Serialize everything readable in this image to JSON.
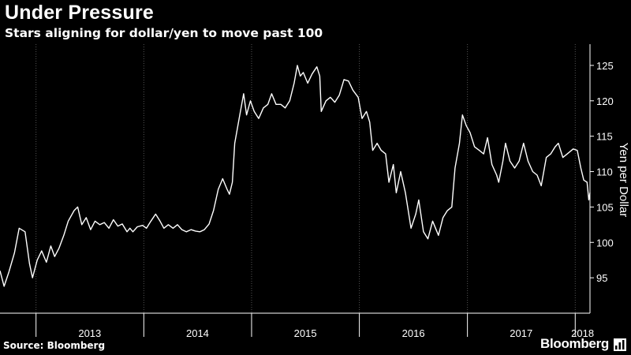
{
  "header": {
    "title": "Under Pressure",
    "subtitle": "Stars aligning for dollar/yen to move past 100"
  },
  "footer": {
    "source": "Source: Bloomberg",
    "brand": "Bloomberg"
  },
  "colors": {
    "background": "#000000",
    "line": "#ffffff",
    "grid": "#555555",
    "text": "#ffffff"
  },
  "chart_data": {
    "type": "line",
    "title": "Under Pressure",
    "subtitle": "Stars aligning for dollar/yen to move past 100",
    "ylabel": "Yen per Dollar",
    "xlabel": "",
    "ylim": [
      90,
      128
    ],
    "xlim": [
      "2012-09-01",
      "2018-02-20"
    ],
    "y_ticks": [
      95,
      100,
      105,
      110,
      115,
      120,
      125
    ],
    "y_tick_labels": [
      "95",
      "100",
      "105",
      "110",
      "115",
      "120",
      "125"
    ],
    "x_year_labels": [
      "2013",
      "2014",
      "2015",
      "2016",
      "2017",
      "2018"
    ],
    "grid": "vertical dotted at year boundaries",
    "y_axis_side": "right",
    "series": [
      {
        "values": [
          [
            "2012-09-01",
            96.0
          ],
          [
            "2012-09-15",
            93.8
          ],
          [
            "2012-10-01",
            95.8
          ],
          [
            "2012-10-20",
            98.5
          ],
          [
            "2012-11-05",
            102.0
          ],
          [
            "2012-11-25",
            101.5
          ],
          [
            "2012-12-10",
            97.0
          ],
          [
            "2012-12-20",
            95.0
          ],
          [
            "2013-01-05",
            97.5
          ],
          [
            "2013-01-20",
            98.8
          ],
          [
            "2013-02-05",
            97.2
          ],
          [
            "2013-02-20",
            99.5
          ],
          [
            "2013-03-05",
            98.0
          ],
          [
            "2013-03-20",
            99.2
          ],
          [
            "2013-04-05",
            101.0
          ],
          [
            "2013-04-20",
            103.0
          ],
          [
            "2013-05-10",
            104.5
          ],
          [
            "2013-05-22",
            105.0
          ],
          [
            "2013-06-05",
            102.5
          ],
          [
            "2013-06-20",
            103.5
          ],
          [
            "2013-07-05",
            101.8
          ],
          [
            "2013-07-20",
            103.0
          ],
          [
            "2013-08-05",
            102.5
          ],
          [
            "2013-08-20",
            102.8
          ],
          [
            "2013-09-05",
            102.0
          ],
          [
            "2013-09-20",
            103.2
          ],
          [
            "2013-10-05",
            102.3
          ],
          [
            "2013-10-20",
            102.6
          ],
          [
            "2013-11-05",
            101.5
          ],
          [
            "2013-11-15",
            102.0
          ],
          [
            "2013-11-25",
            101.5
          ],
          [
            "2013-12-10",
            102.2
          ],
          [
            "2013-12-28",
            102.4
          ],
          [
            "2014-01-10",
            102.0
          ],
          [
            "2014-01-25",
            103.0
          ],
          [
            "2014-02-10",
            104.0
          ],
          [
            "2014-02-25",
            103.0
          ],
          [
            "2014-03-10",
            102.0
          ],
          [
            "2014-03-25",
            102.5
          ],
          [
            "2014-04-10",
            102.0
          ],
          [
            "2014-04-25",
            102.5
          ],
          [
            "2014-05-10",
            101.8
          ],
          [
            "2014-05-25",
            101.5
          ],
          [
            "2014-06-10",
            101.8
          ],
          [
            "2014-06-25",
            101.6
          ],
          [
            "2014-07-10",
            101.5
          ],
          [
            "2014-07-25",
            101.8
          ],
          [
            "2014-08-10",
            102.6
          ],
          [
            "2014-08-25",
            104.5
          ],
          [
            "2014-09-10",
            107.5
          ],
          [
            "2014-09-25",
            109.0
          ],
          [
            "2014-10-10",
            107.5
          ],
          [
            "2014-10-18",
            106.8
          ],
          [
            "2014-10-28",
            108.5
          ],
          [
            "2014-11-05",
            114.0
          ],
          [
            "2014-11-20",
            117.5
          ],
          [
            "2014-12-05",
            121.0
          ],
          [
            "2014-12-15",
            118.0
          ],
          [
            "2014-12-28",
            120.0
          ],
          [
            "2015-01-10",
            118.5
          ],
          [
            "2015-01-25",
            117.5
          ],
          [
            "2015-02-10",
            119.0
          ],
          [
            "2015-02-25",
            119.5
          ],
          [
            "2015-03-10",
            121.0
          ],
          [
            "2015-03-25",
            119.5
          ],
          [
            "2015-04-10",
            119.5
          ],
          [
            "2015-04-25",
            119.0
          ],
          [
            "2015-05-10",
            120.0
          ],
          [
            "2015-05-25",
            122.5
          ],
          [
            "2015-06-05",
            125.0
          ],
          [
            "2015-06-15",
            123.5
          ],
          [
            "2015-06-25",
            124.0
          ],
          [
            "2015-07-10",
            122.5
          ],
          [
            "2015-07-25",
            123.8
          ],
          [
            "2015-08-10",
            124.8
          ],
          [
            "2015-08-20",
            123.5
          ],
          [
            "2015-08-25",
            118.5
          ],
          [
            "2015-09-10",
            120.0
          ],
          [
            "2015-09-25",
            120.5
          ],
          [
            "2015-10-10",
            119.8
          ],
          [
            "2015-10-25",
            120.8
          ],
          [
            "2015-11-10",
            123.0
          ],
          [
            "2015-11-25",
            122.8
          ],
          [
            "2015-12-10",
            121.5
          ],
          [
            "2015-12-28",
            120.5
          ],
          [
            "2016-01-10",
            117.5
          ],
          [
            "2016-01-25",
            118.5
          ],
          [
            "2016-02-05",
            117.0
          ],
          [
            "2016-02-15",
            113.0
          ],
          [
            "2016-03-01",
            114.0
          ],
          [
            "2016-03-15",
            113.0
          ],
          [
            "2016-03-30",
            112.5
          ],
          [
            "2016-04-10",
            108.5
          ],
          [
            "2016-04-25",
            111.0
          ],
          [
            "2016-05-05",
            107.0
          ],
          [
            "2016-05-20",
            110.0
          ],
          [
            "2016-06-05",
            107.0
          ],
          [
            "2016-06-24",
            102.0
          ],
          [
            "2016-07-10",
            104.0
          ],
          [
            "2016-07-20",
            106.0
          ],
          [
            "2016-08-05",
            101.5
          ],
          [
            "2016-08-20",
            100.5
          ],
          [
            "2016-09-05",
            103.0
          ],
          [
            "2016-09-25",
            101.0
          ],
          [
            "2016-10-10",
            103.5
          ],
          [
            "2016-10-25",
            104.5
          ],
          [
            "2016-11-09",
            105.0
          ],
          [
            "2016-11-20",
            110.5
          ],
          [
            "2016-12-05",
            114.0
          ],
          [
            "2016-12-15",
            118.0
          ],
          [
            "2016-12-28",
            116.5
          ],
          [
            "2017-01-10",
            115.5
          ],
          [
            "2017-01-25",
            113.5
          ],
          [
            "2017-02-10",
            113.0
          ],
          [
            "2017-02-25",
            112.5
          ],
          [
            "2017-03-10",
            114.8
          ],
          [
            "2017-03-25",
            111.0
          ],
          [
            "2017-04-10",
            109.5
          ],
          [
            "2017-04-17",
            108.5
          ],
          [
            "2017-05-01",
            111.5
          ],
          [
            "2017-05-10",
            114.0
          ],
          [
            "2017-05-25",
            111.5
          ],
          [
            "2017-06-10",
            110.5
          ],
          [
            "2017-06-25",
            111.5
          ],
          [
            "2017-07-10",
            114.0
          ],
          [
            "2017-07-25",
            111.5
          ],
          [
            "2017-08-10",
            110.0
          ],
          [
            "2017-08-25",
            109.5
          ],
          [
            "2017-09-08",
            108.0
          ],
          [
            "2017-09-25",
            112.0
          ],
          [
            "2017-10-10",
            112.5
          ],
          [
            "2017-10-25",
            113.5
          ],
          [
            "2017-11-05",
            114.0
          ],
          [
            "2017-11-20",
            112.0
          ],
          [
            "2017-12-05",
            112.5
          ],
          [
            "2017-12-25",
            113.2
          ],
          [
            "2018-01-08",
            113.0
          ],
          [
            "2018-01-20",
            110.5
          ],
          [
            "2018-01-30",
            108.8
          ],
          [
            "2018-02-10",
            108.5
          ],
          [
            "2018-02-16",
            106.0
          ],
          [
            "2018-02-20",
            107.0
          ]
        ]
      }
    ]
  }
}
